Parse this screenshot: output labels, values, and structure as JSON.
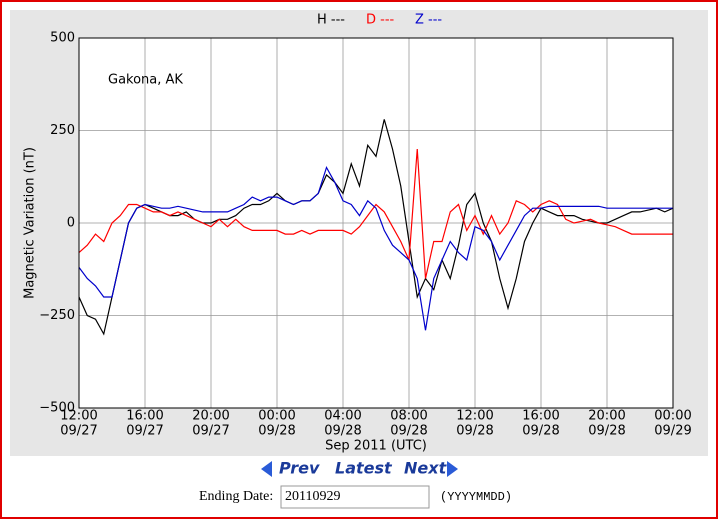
{
  "chart_data": {
    "type": "line",
    "legend": "top",
    "annotation": "Gakona, AK",
    "xlabel": "Sep 2011 (UTC)",
    "ylabel": "Magnetic Variation (nT)",
    "grid": true,
    "xlim": [
      "2011-09-27T12:00",
      "2011-09-29T00:00"
    ],
    "xticks": [
      {
        "value": "2011-09-27T12:00",
        "label": [
          "12:00",
          "09/27"
        ]
      },
      {
        "value": "2011-09-27T16:00",
        "label": [
          "16:00",
          "09/27"
        ]
      },
      {
        "value": "2011-09-27T20:00",
        "label": [
          "20:00",
          "09/27"
        ]
      },
      {
        "value": "2011-09-28T00:00",
        "label": [
          "00:00",
          "09/28"
        ]
      },
      {
        "value": "2011-09-28T04:00",
        "label": [
          "04:00",
          "09/28"
        ]
      },
      {
        "value": "2011-09-28T08:00",
        "label": [
          "08:00",
          "09/28"
        ]
      },
      {
        "value": "2011-09-28T12:00",
        "label": [
          "12:00",
          "09/28"
        ]
      },
      {
        "value": "2011-09-28T16:00",
        "label": [
          "16:00",
          "09/28"
        ]
      },
      {
        "value": "2011-09-28T20:00",
        "label": [
          "20:00",
          "09/28"
        ]
      },
      {
        "value": "2011-09-29T00:00",
        "label": [
          "00:00",
          "09/29"
        ]
      }
    ],
    "ylim": [
      -500,
      500
    ],
    "yticks": [
      {
        "value": -500,
        "label": "−500"
      },
      {
        "value": -250,
        "label": "−250"
      },
      0,
      250,
      500
    ],
    "x": [
      "2011-09-27T12:00",
      "2011-09-27T12:30",
      "2011-09-27T13:00",
      "2011-09-27T13:30",
      "2011-09-27T14:00",
      "2011-09-27T14:30",
      "2011-09-27T15:00",
      "2011-09-27T15:30",
      "2011-09-27T16:00",
      "2011-09-27T16:30",
      "2011-09-27T17:00",
      "2011-09-27T17:30",
      "2011-09-27T18:00",
      "2011-09-27T18:30",
      "2011-09-27T19:00",
      "2011-09-27T19:30",
      "2011-09-27T20:00",
      "2011-09-27T20:30",
      "2011-09-27T21:00",
      "2011-09-27T21:30",
      "2011-09-27T22:00",
      "2011-09-27T22:30",
      "2011-09-27T23:00",
      "2011-09-27T23:30",
      "2011-09-28T00:00",
      "2011-09-28T00:30",
      "2011-09-28T01:00",
      "2011-09-28T01:30",
      "2011-09-28T02:00",
      "2011-09-28T02:30",
      "2011-09-28T03:00",
      "2011-09-28T03:30",
      "2011-09-28T04:00",
      "2011-09-28T04:30",
      "2011-09-28T05:00",
      "2011-09-28T05:30",
      "2011-09-28T06:00",
      "2011-09-28T06:30",
      "2011-09-28T07:00",
      "2011-09-28T07:30",
      "2011-09-28T08:00",
      "2011-09-28T08:30",
      "2011-09-28T09:00",
      "2011-09-28T09:30",
      "2011-09-28T10:00",
      "2011-09-28T10:30",
      "2011-09-28T11:00",
      "2011-09-28T11:30",
      "2011-09-28T12:00",
      "2011-09-28T12:30",
      "2011-09-28T13:00",
      "2011-09-28T13:30",
      "2011-09-28T14:00",
      "2011-09-28T14:30",
      "2011-09-28T15:00",
      "2011-09-28T15:30",
      "2011-09-28T16:00",
      "2011-09-28T16:30",
      "2011-09-28T17:00",
      "2011-09-28T17:30",
      "2011-09-28T18:00",
      "2011-09-28T18:30",
      "2011-09-28T19:00",
      "2011-09-28T19:30",
      "2011-09-28T20:00",
      "2011-09-28T20:30",
      "2011-09-28T21:00",
      "2011-09-28T21:30",
      "2011-09-28T22:00",
      "2011-09-28T22:30",
      "2011-09-28T23:00",
      "2011-09-28T23:30",
      "2011-09-29T00:00"
    ],
    "series": [
      {
        "name": "H ---",
        "color": "#000000",
        "values": [
          -200,
          -250,
          -260,
          -300,
          -200,
          -100,
          0,
          40,
          50,
          40,
          30,
          20,
          20,
          30,
          10,
          0,
          0,
          10,
          10,
          20,
          40,
          50,
          50,
          60,
          80,
          60,
          50,
          60,
          60,
          80,
          130,
          110,
          80,
          160,
          100,
          210,
          180,
          280,
          200,
          100,
          -50,
          -200,
          -150,
          -180,
          -100,
          -150,
          -60,
          50,
          80,
          0,
          -50,
          -150,
          -230,
          -150,
          -50,
          0,
          40,
          30,
          20,
          20,
          20,
          10,
          5,
          0,
          0,
          10,
          20,
          30,
          30,
          35,
          40,
          30,
          40
        ]
      },
      {
        "name": "D ---",
        "color": "#ff0000",
        "values": [
          -80,
          -60,
          -30,
          -50,
          0,
          20,
          50,
          50,
          40,
          30,
          30,
          20,
          30,
          20,
          10,
          0,
          -10,
          10,
          -10,
          10,
          -10,
          -20,
          -20,
          -20,
          -20,
          -30,
          -30,
          -20,
          -30,
          -20,
          -20,
          -20,
          -20,
          -30,
          -10,
          20,
          50,
          30,
          -10,
          -50,
          -100,
          200,
          -150,
          -50,
          -50,
          30,
          50,
          -20,
          20,
          -30,
          20,
          -30,
          0,
          60,
          50,
          30,
          50,
          60,
          50,
          10,
          0,
          5,
          10,
          0,
          -5,
          -10,
          -20,
          -30,
          -30,
          -30,
          -30,
          -30,
          -30
        ]
      },
      {
        "name": "Z ---",
        "color": "#0000cc",
        "values": [
          -120,
          -150,
          -170,
          -200,
          -200,
          -100,
          0,
          40,
          50,
          45,
          40,
          40,
          45,
          40,
          35,
          30,
          30,
          30,
          30,
          40,
          50,
          70,
          60,
          70,
          70,
          60,
          50,
          60,
          60,
          80,
          150,
          110,
          60,
          50,
          20,
          60,
          40,
          -20,
          -60,
          -80,
          -100,
          -150,
          -290,
          -150,
          -100,
          -50,
          -80,
          -100,
          -10,
          -20,
          -50,
          -100,
          -60,
          -20,
          20,
          40,
          40,
          45,
          45,
          45,
          45,
          45,
          45,
          45,
          40,
          40,
          40,
          40,
          40,
          40,
          40,
          40,
          40
        ]
      }
    ]
  },
  "controls": {
    "prev": "Prev",
    "latest": "Latest",
    "next": "Next",
    "date_label": "Ending Date:",
    "date_value": "20110929",
    "date_format": "(YYYYMMDD)"
  }
}
